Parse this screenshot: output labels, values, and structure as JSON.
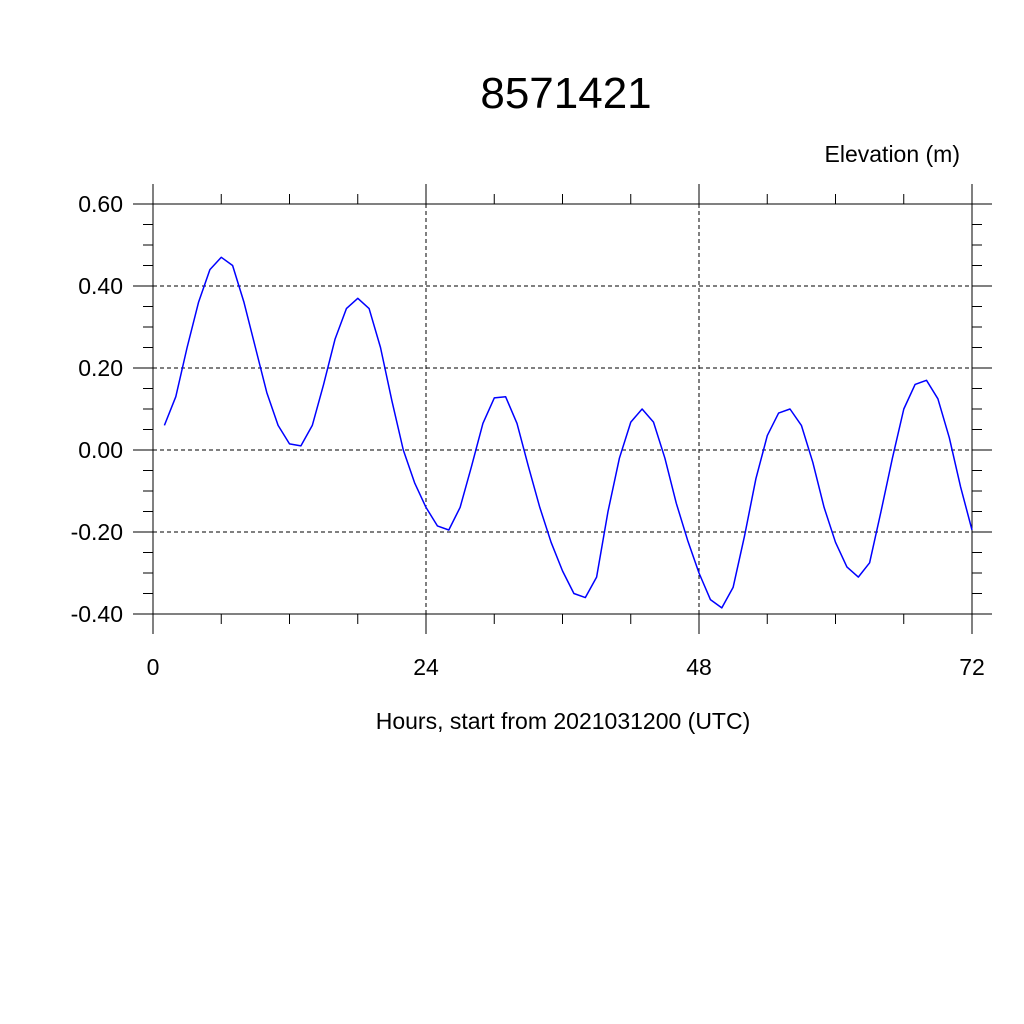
{
  "chart_data": {
    "type": "line",
    "title": "8571421",
    "ylabel": "Elevation (m)",
    "xlabel": "Hours, start from 2021031200 (UTC)",
    "xlim": [
      0,
      72
    ],
    "ylim": [
      -0.4,
      0.6
    ],
    "xticks": [
      0,
      24,
      48,
      72
    ],
    "xtick_labels": [
      "0",
      "24",
      "48",
      "72"
    ],
    "yticks": [
      -0.4,
      -0.2,
      0.0,
      0.2,
      0.4,
      0.6
    ],
    "ytick_labels": [
      "-0.40",
      "-0.20",
      "0.00",
      "0.20",
      "0.40",
      "0.60"
    ],
    "grid": true,
    "grid_style": "dashed",
    "series": [
      {
        "color": "#0000ff",
        "x": [
          1,
          2,
          3,
          4,
          5,
          6,
          7,
          8,
          9,
          10,
          11,
          12,
          13,
          14,
          15,
          16,
          17,
          18,
          19,
          20,
          21,
          22,
          23,
          24,
          25,
          26,
          27,
          28,
          29,
          30,
          31,
          32,
          33,
          34,
          35,
          36,
          37,
          38,
          39,
          40,
          41,
          42,
          43,
          44,
          45,
          46,
          47,
          48,
          49,
          50,
          51,
          52,
          53,
          54,
          55,
          56,
          57,
          58,
          59,
          60,
          61,
          62,
          63,
          64,
          65,
          66,
          67,
          68,
          69,
          70,
          71,
          72
        ],
        "y": [
          0.06,
          0.13,
          0.25,
          0.36,
          0.44,
          0.47,
          0.45,
          0.36,
          0.25,
          0.14,
          0.06,
          0.015,
          0.01,
          0.06,
          0.16,
          0.27,
          0.345,
          0.37,
          0.345,
          0.25,
          0.12,
          0.0,
          -0.08,
          -0.14,
          -0.185,
          -0.195,
          -0.14,
          -0.04,
          0.065,
          0.127,
          0.13,
          0.065,
          -0.04,
          -0.14,
          -0.225,
          -0.295,
          -0.35,
          -0.36,
          -0.31,
          -0.15,
          -0.02,
          0.068,
          0.1,
          0.068,
          -0.02,
          -0.13,
          -0.22,
          -0.3,
          -0.365,
          -0.385,
          -0.335,
          -0.21,
          -0.07,
          0.035,
          0.09,
          0.1,
          0.06,
          -0.03,
          -0.14,
          -0.225,
          -0.285,
          -0.31,
          -0.275,
          -0.15,
          -0.02,
          0.1,
          0.16,
          0.17,
          0.125,
          0.03,
          -0.09,
          -0.195
        ]
      }
    ]
  }
}
